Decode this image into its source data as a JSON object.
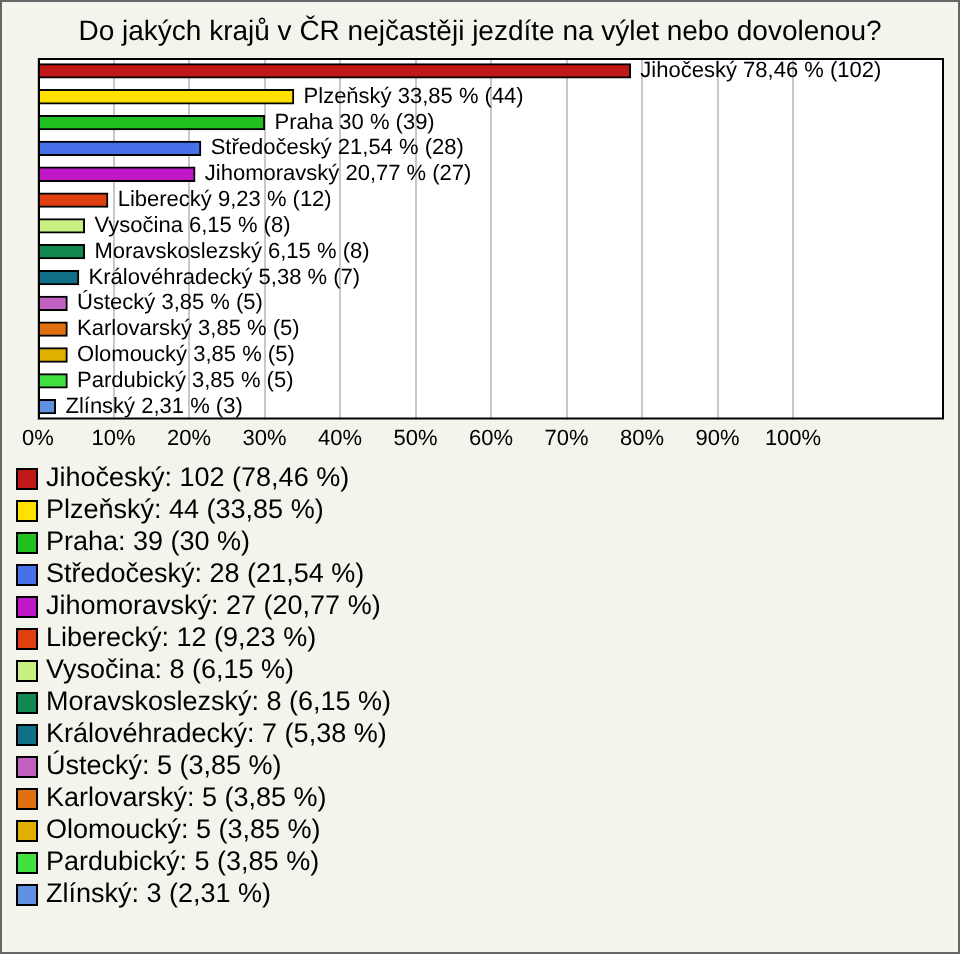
{
  "chart_data": {
    "type": "bar",
    "orientation": "horizontal",
    "title": "Do jakých krajů v ČR nejčastěji jezdíte na výlet nebo dovolenou?",
    "categories": [
      "Jihočeský",
      "Plzeňský",
      "Praha",
      "Středočeský",
      "Jihomoravský",
      "Liberecký",
      "Vysočina",
      "Moravskoslezský",
      "Královéhradecký",
      "Ústecký",
      "Karlovarský",
      "Olomoucký",
      "Pardubický",
      "Zlínský"
    ],
    "values": [
      78.46,
      33.85,
      30,
      21.54,
      20.77,
      9.23,
      6.15,
      6.15,
      5.38,
      3.85,
      3.85,
      3.85,
      3.85,
      2.31
    ],
    "value_labels": [
      "78,46 % (102)",
      "33,85 % (44)",
      "30 % (39)",
      "21,54 % (28)",
      "20,77 % (27)",
      "9,23 % (12)",
      "6,15 % (8)",
      "6,15 % (8)",
      "5,38 % (7)",
      "3,85 % (5)",
      "3,85 % (5)",
      "3,85 % (5)",
      "3,85 % (5)",
      "2,31 % (3)"
    ],
    "colors": [
      "#c01818",
      "#ffe000",
      "#20c020",
      "#4870e8",
      "#c018c8",
      "#e04010",
      "#c8f080",
      "#108850",
      "#107088",
      "#c060c0",
      "#e07010",
      "#e0b000",
      "#40e040",
      "#6090e0"
    ],
    "annotations": [
      "Jihočeský: 102 (78,46 %)",
      "Plzeňský: 44 (33,85 %)",
      "Praha: 39 (30 %)",
      "Středočeský: 28 (21,54 %)",
      "Jihomoravský: 27 (20,77 %)",
      "Liberecký: 12 (9,23 %)",
      "Vysočina: 8 (6,15 %)",
      "Moravskoslezský: 8 (6,15 %)",
      "Královéhradecký: 7 (5,38 %)",
      "Ústecký: 5 (3,85 %)",
      "Karlovarský: 5 (3,85 %)",
      "Olomoucký: 5 (3,85 %)",
      "Pardubický: 5 (3,85 %)",
      "Zlínský: 3 (2,31 %)"
    ],
    "xlim": [
      0,
      120
    ],
    "xticks": [
      {
        "value": 0,
        "label": "0%"
      },
      {
        "value": 10,
        "label": "10%"
      },
      {
        "value": 20,
        "label": "20%"
      },
      {
        "value": 30,
        "label": "30%"
      },
      {
        "value": 40,
        "label": "40%"
      },
      {
        "value": 50,
        "label": "50%"
      },
      {
        "value": 60,
        "label": "60%"
      },
      {
        "value": 70,
        "label": "70%"
      },
      {
        "value": 80,
        "label": "80%"
      },
      {
        "value": 90,
        "label": "90%"
      },
      {
        "value": 100,
        "label": "100%"
      }
    ],
    "grid": "x",
    "tick_labels": "x"
  }
}
